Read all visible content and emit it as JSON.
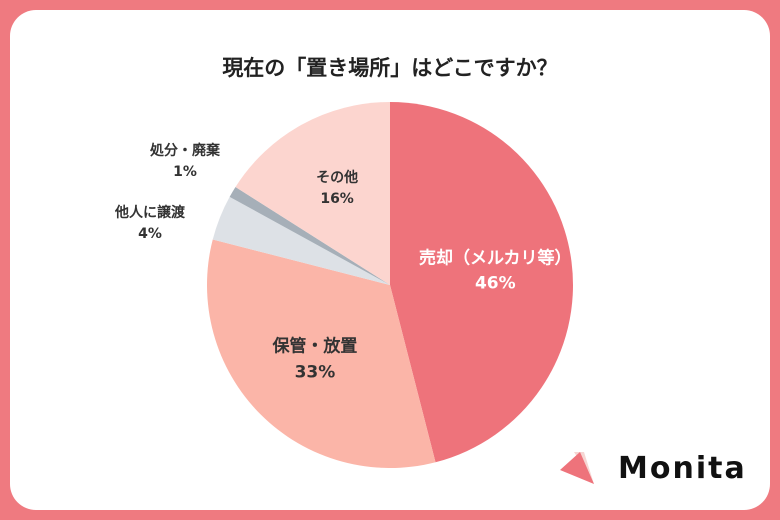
{
  "chart_data": {
    "type": "pie",
    "title": "現在の「置き場所」はどこですか？",
    "start": "top",
    "direction": "clockwise",
    "slices": [
      {
        "label": "売却（メルカリ等）",
        "value": 46,
        "value_label": "46%",
        "color": "#ee737b",
        "text_color": "#ffffff",
        "label_position": "inside"
      },
      {
        "label": "保管・放置",
        "value": 33,
        "value_label": "33%",
        "color": "#fbb5a8",
        "text_color": "#333333",
        "label_position": "inside"
      },
      {
        "label": "他人に譲渡",
        "value": 4,
        "value_label": "4%",
        "color": "#dde1e6",
        "text_color": "#333333",
        "label_position": "outside"
      },
      {
        "label": "処分・廃棄",
        "value": 1,
        "value_label": "1%",
        "color": "#a6afb8",
        "text_color": "#333333",
        "label_position": "outside"
      },
      {
        "label": "その他",
        "value": 16,
        "value_label": "16%",
        "color": "#fcd5cf",
        "text_color": "#333333",
        "label_position": "inside"
      }
    ]
  },
  "logo": {
    "text": "Monita",
    "color": "#ee737b"
  }
}
